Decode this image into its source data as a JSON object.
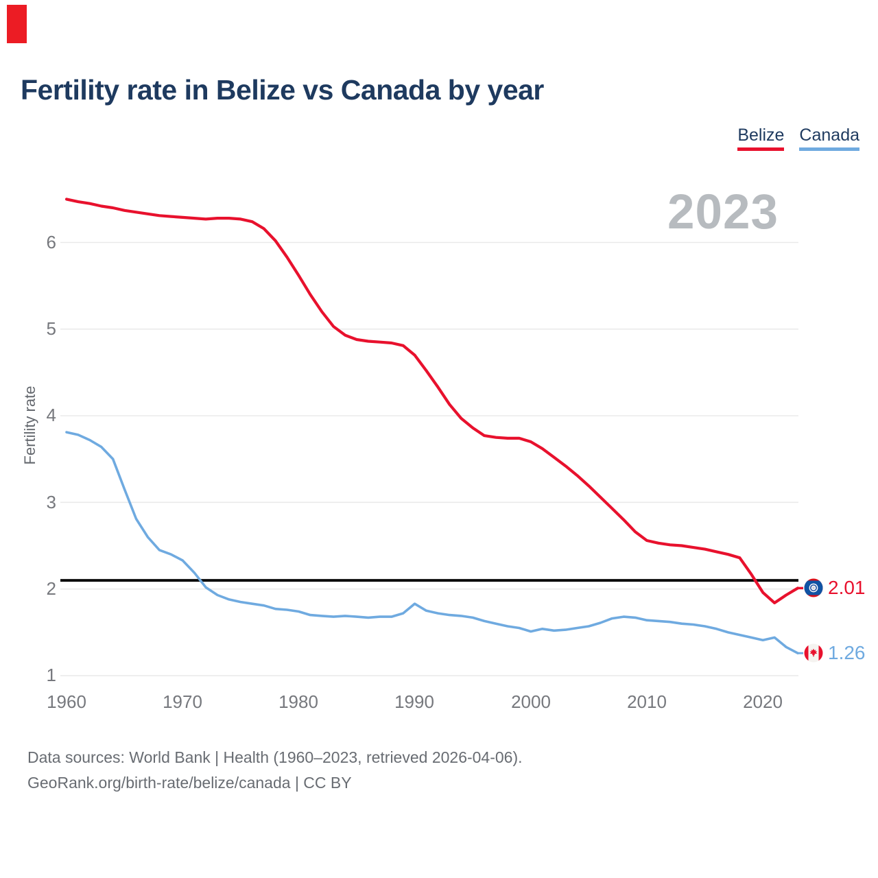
{
  "title": "Fertility rate in Belize vs Canada by year",
  "watermark_year": "2023",
  "annotation": {
    "color": "#ec1c24"
  },
  "legend": {
    "items": [
      {
        "label": "Belize",
        "color": "#e8112d"
      },
      {
        "label": "Canada",
        "color": "#6faae0"
      }
    ]
  },
  "y_axis": {
    "label": "Fertility rate",
    "ticks": [
      "6",
      "5",
      "4",
      "3",
      "2",
      "1"
    ]
  },
  "x_axis": {
    "ticks": [
      "1960",
      "1970",
      "1980",
      "1990",
      "2000",
      "2010",
      "2020"
    ]
  },
  "reference_line": {
    "value": 2.1,
    "color": "#0b0b0b"
  },
  "end_labels": [
    {
      "series": "Belize",
      "value": "2.01",
      "flag": "belize-flag"
    },
    {
      "series": "Canada",
      "value": "1.26",
      "flag": "canada-flag"
    }
  ],
  "footer": {
    "line1": "Data sources: World Bank | Health (1960–2023, retrieved 2026-04-06).",
    "line2": "GeoRank.org/birth-rate/belize/canada | CC BY"
  },
  "chart_data": {
    "type": "line",
    "title": "Fertility rate in Belize vs Canada by year",
    "xlabel": "",
    "ylabel": "Fertility rate",
    "ylim": [
      1,
      6.6
    ],
    "x_range": [
      1960,
      2023
    ],
    "grid": "horizontal",
    "legend_position": "top-right",
    "reference_line_value": 2.1,
    "x": [
      1960,
      1961,
      1962,
      1963,
      1964,
      1965,
      1966,
      1967,
      1968,
      1969,
      1970,
      1971,
      1972,
      1973,
      1974,
      1975,
      1976,
      1977,
      1978,
      1979,
      1980,
      1981,
      1982,
      1983,
      1984,
      1985,
      1986,
      1987,
      1988,
      1989,
      1990,
      1991,
      1992,
      1993,
      1994,
      1995,
      1996,
      1997,
      1998,
      1999,
      2000,
      2001,
      2002,
      2003,
      2004,
      2005,
      2006,
      2007,
      2008,
      2009,
      2010,
      2011,
      2012,
      2013,
      2014,
      2015,
      2016,
      2017,
      2018,
      2019,
      2020,
      2021,
      2022,
      2023
    ],
    "series": [
      {
        "name": "Belize",
        "color": "#e8112d",
        "final_value": 2.01,
        "values": [
          6.5,
          6.47,
          6.45,
          6.42,
          6.4,
          6.37,
          6.35,
          6.33,
          6.31,
          6.3,
          6.29,
          6.28,
          6.27,
          6.28,
          6.28,
          6.27,
          6.24,
          6.16,
          6.02,
          5.83,
          5.62,
          5.4,
          5.2,
          5.03,
          4.93,
          4.88,
          4.86,
          4.85,
          4.84,
          4.81,
          4.7,
          4.52,
          4.33,
          4.13,
          3.97,
          3.86,
          3.77,
          3.75,
          3.74,
          3.74,
          3.7,
          3.62,
          3.52,
          3.42,
          3.31,
          3.19,
          3.06,
          2.93,
          2.8,
          2.66,
          2.56,
          2.53,
          2.51,
          2.5,
          2.48,
          2.46,
          2.43,
          2.4,
          2.36,
          2.17,
          1.96,
          1.84,
          1.93,
          2.01
        ]
      },
      {
        "name": "Canada",
        "color": "#6faae0",
        "final_value": 1.26,
        "values": [
          3.81,
          3.78,
          3.72,
          3.64,
          3.5,
          3.15,
          2.81,
          2.6,
          2.45,
          2.4,
          2.33,
          2.19,
          2.02,
          1.93,
          1.88,
          1.85,
          1.83,
          1.81,
          1.77,
          1.76,
          1.74,
          1.7,
          1.69,
          1.68,
          1.69,
          1.68,
          1.67,
          1.68,
          1.68,
          1.72,
          1.83,
          1.75,
          1.72,
          1.7,
          1.69,
          1.67,
          1.63,
          1.6,
          1.57,
          1.55,
          1.51,
          1.54,
          1.52,
          1.53,
          1.55,
          1.57,
          1.61,
          1.66,
          1.68,
          1.67,
          1.64,
          1.63,
          1.62,
          1.6,
          1.59,
          1.57,
          1.54,
          1.5,
          1.47,
          1.44,
          1.41,
          1.44,
          1.33,
          1.26
        ]
      }
    ]
  }
}
